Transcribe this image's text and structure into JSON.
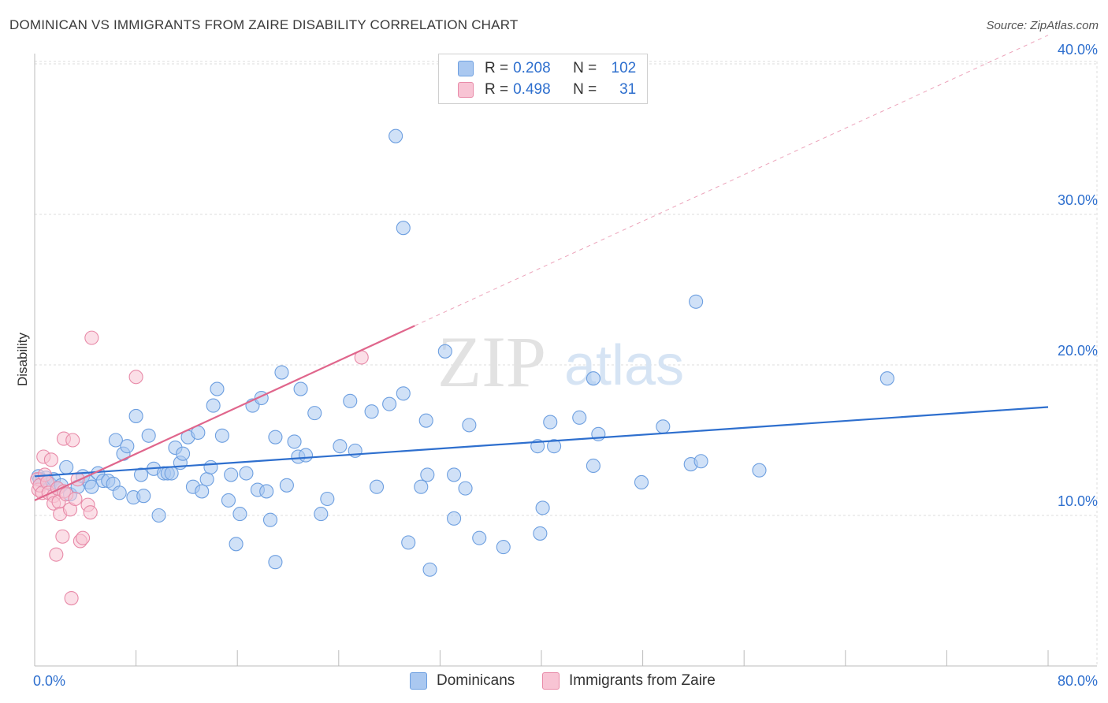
{
  "title": "DOMINICAN VS IMMIGRANTS FROM ZAIRE DISABILITY CORRELATION CHART",
  "source": "Source: ZipAtlas.com",
  "watermark": {
    "zip": "ZIP",
    "atlas": "atlas"
  },
  "legend": {
    "rows": [
      {
        "r_label": "R =",
        "r_value": "0.208",
        "n_label": "N =",
        "n_value": "102",
        "color": "#aac8f0",
        "border": "#6d9fe0"
      },
      {
        "r_label": "R =",
        "r_value": "0.498",
        "n_label": "N =",
        "n_value": "31",
        "color": "#f8c4d4",
        "border": "#e88aa8"
      }
    ]
  },
  "bottom_legend": {
    "dominicans": "Dominicans",
    "zaire": "Immigrants from Zaire"
  },
  "chart_data": {
    "type": "scatter",
    "title": "DOMINICAN VS IMMIGRANTS FROM ZAIRE DISABILITY CORRELATION CHART",
    "xlabel": "",
    "ylabel": "Disability",
    "xlim": [
      0,
      80
    ],
    "ylim": [
      0,
      41
    ],
    "x_tick_labels": [
      "0.0%",
      "80.0%"
    ],
    "y_ticks": [
      10,
      20,
      30,
      40
    ],
    "y_tick_labels": [
      "10.0%",
      "20.0%",
      "30.0%",
      "40.0%"
    ],
    "grid": true,
    "legend_position": "top-center",
    "series": [
      {
        "name": "Dominicans",
        "color": "#6d9fe0",
        "fill": "#aac8f0",
        "trendline": {
          "x": [
            0,
            80
          ],
          "y": [
            12.6,
            17.2
          ],
          "color": "#2e6fce"
        },
        "points": [
          [
            0.3,
            12.6
          ],
          [
            0.6,
            12.3
          ],
          [
            0.9,
            12.5
          ],
          [
            1.2,
            12.1
          ],
          [
            1.5,
            12.4
          ],
          [
            1.8,
            11.8
          ],
          [
            2.1,
            12.0
          ],
          [
            2.5,
            13.2
          ],
          [
            2.8,
            11.4
          ],
          [
            3.4,
            11.9
          ],
          [
            3.8,
            12.6
          ],
          [
            4.3,
            12.2
          ],
          [
            4.5,
            11.9
          ],
          [
            5.0,
            12.8
          ],
          [
            5.4,
            12.3
          ],
          [
            5.8,
            12.3
          ],
          [
            6.2,
            12.1
          ],
          [
            6.4,
            15.0
          ],
          [
            6.7,
            11.5
          ],
          [
            7.0,
            14.1
          ],
          [
            7.3,
            14.6
          ],
          [
            7.8,
            11.2
          ],
          [
            8.0,
            16.6
          ],
          [
            8.4,
            12.7
          ],
          [
            8.6,
            11.3
          ],
          [
            9.0,
            15.3
          ],
          [
            9.4,
            13.1
          ],
          [
            9.8,
            10.0
          ],
          [
            10.2,
            12.8
          ],
          [
            10.5,
            12.8
          ],
          [
            10.8,
            12.8
          ],
          [
            11.1,
            14.5
          ],
          [
            11.5,
            13.5
          ],
          [
            11.7,
            14.1
          ],
          [
            12.1,
            15.2
          ],
          [
            12.5,
            11.9
          ],
          [
            12.9,
            15.5
          ],
          [
            13.2,
            11.6
          ],
          [
            13.6,
            12.4
          ],
          [
            13.9,
            13.2
          ],
          [
            14.1,
            17.3
          ],
          [
            14.4,
            18.4
          ],
          [
            14.8,
            15.3
          ],
          [
            15.3,
            11.0
          ],
          [
            15.5,
            12.7
          ],
          [
            15.9,
            8.1
          ],
          [
            16.2,
            10.1
          ],
          [
            16.7,
            12.8
          ],
          [
            17.2,
            17.3
          ],
          [
            17.6,
            11.7
          ],
          [
            17.9,
            17.8
          ],
          [
            18.3,
            11.6
          ],
          [
            18.6,
            9.7
          ],
          [
            19.0,
            15.2
          ],
          [
            19.0,
            6.9
          ],
          [
            19.5,
            19.5
          ],
          [
            19.9,
            12.0
          ],
          [
            20.5,
            14.9
          ],
          [
            20.8,
            13.9
          ],
          [
            21.0,
            18.4
          ],
          [
            21.4,
            14.0
          ],
          [
            22.1,
            16.8
          ],
          [
            22.6,
            10.1
          ],
          [
            23.1,
            11.1
          ],
          [
            24.1,
            14.6
          ],
          [
            24.9,
            17.6
          ],
          [
            25.3,
            14.3
          ],
          [
            26.6,
            16.9
          ],
          [
            27.0,
            11.9
          ],
          [
            28.0,
            17.4
          ],
          [
            28.5,
            35.2
          ],
          [
            29.1,
            29.1
          ],
          [
            29.1,
            18.1
          ],
          [
            29.5,
            8.2
          ],
          [
            30.5,
            11.9
          ],
          [
            30.9,
            16.3
          ],
          [
            31.0,
            12.7
          ],
          [
            31.2,
            6.4
          ],
          [
            32.4,
            20.9
          ],
          [
            33.1,
            12.7
          ],
          [
            33.1,
            9.8
          ],
          [
            34.0,
            11.8
          ],
          [
            34.3,
            16.0
          ],
          [
            35.1,
            8.5
          ],
          [
            37.0,
            7.9
          ],
          [
            39.7,
            14.6
          ],
          [
            39.9,
            8.8
          ],
          [
            40.1,
            10.5
          ],
          [
            40.7,
            16.2
          ],
          [
            41.0,
            14.6
          ],
          [
            43.0,
            16.5
          ],
          [
            44.1,
            19.1
          ],
          [
            44.1,
            13.3
          ],
          [
            44.5,
            15.4
          ],
          [
            47.9,
            12.2
          ],
          [
            49.6,
            15.9
          ],
          [
            51.8,
            13.4
          ],
          [
            52.2,
            24.2
          ],
          [
            52.6,
            13.6
          ],
          [
            57.2,
            13.0
          ],
          [
            67.3,
            19.1
          ],
          [
            0.4,
            12.4
          ]
        ]
      },
      {
        "name": "Immigrants from Zaire",
        "color": "#e88aa8",
        "fill": "#f8c4d4",
        "trendline": {
          "x": [
            0,
            30
          ],
          "y": [
            11.0,
            22.6
          ],
          "dashed_extension_to": [
            80,
            41.9
          ],
          "color": "#e0668c"
        },
        "points": [
          [
            0.2,
            12.4
          ],
          [
            0.3,
            11.7
          ],
          [
            0.4,
            12.0
          ],
          [
            0.6,
            11.5
          ],
          [
            0.7,
            13.9
          ],
          [
            0.8,
            12.7
          ],
          [
            1.0,
            12.2
          ],
          [
            1.1,
            11.5
          ],
          [
            1.3,
            13.7
          ],
          [
            1.5,
            11.3
          ],
          [
            1.5,
            10.8
          ],
          [
            1.7,
            7.4
          ],
          [
            1.8,
            11.8
          ],
          [
            1.9,
            10.9
          ],
          [
            2.0,
            10.1
          ],
          [
            2.2,
            8.6
          ],
          [
            2.3,
            11.6
          ],
          [
            2.3,
            15.1
          ],
          [
            2.5,
            11.4
          ],
          [
            2.8,
            10.4
          ],
          [
            3.0,
            15.0
          ],
          [
            3.2,
            11.1
          ],
          [
            3.4,
            12.4
          ],
          [
            3.6,
            8.3
          ],
          [
            3.8,
            8.5
          ],
          [
            2.9,
            4.5
          ],
          [
            4.2,
            10.7
          ],
          [
            4.4,
            10.2
          ],
          [
            4.5,
            21.8
          ],
          [
            8.0,
            19.2
          ],
          [
            25.8,
            20.5
          ]
        ]
      }
    ]
  }
}
